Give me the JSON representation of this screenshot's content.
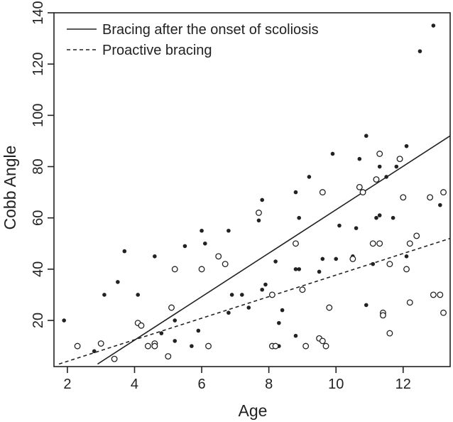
{
  "chart_data": {
    "type": "scatter",
    "xlabel": "Age",
    "ylabel": "Cobb Angle",
    "xlim": [
      1.6,
      13.4
    ],
    "ylim": [
      2,
      140
    ],
    "xticks": [
      2,
      4,
      6,
      8,
      10,
      12
    ],
    "yticks": [
      20,
      40,
      60,
      80,
      100,
      120,
      140
    ],
    "grid": false,
    "legend_position": "top-left",
    "series": [
      {
        "name": "Bracing after the onset of scoliosis",
        "marker": "filled-circle",
        "points": [
          [
            1.9,
            20
          ],
          [
            2.8,
            8
          ],
          [
            3.1,
            30
          ],
          [
            3.5,
            35
          ],
          [
            3.7,
            47
          ],
          [
            4.1,
            30
          ],
          [
            4.6,
            45
          ],
          [
            4.8,
            15
          ],
          [
            5.2,
            20
          ],
          [
            5.2,
            12
          ],
          [
            5.5,
            49
          ],
          [
            5.7,
            10
          ],
          [
            5.9,
            16
          ],
          [
            6.0,
            55
          ],
          [
            6.1,
            50
          ],
          [
            6.8,
            55
          ],
          [
            6.8,
            23
          ],
          [
            6.9,
            30
          ],
          [
            7.2,
            30
          ],
          [
            7.4,
            25
          ],
          [
            7.7,
            59
          ],
          [
            7.8,
            67
          ],
          [
            7.8,
            32
          ],
          [
            7.9,
            34
          ],
          [
            8.2,
            43
          ],
          [
            8.3,
            10
          ],
          [
            8.3,
            19
          ],
          [
            8.4,
            24
          ],
          [
            8.8,
            70
          ],
          [
            8.8,
            40
          ],
          [
            8.8,
            14
          ],
          [
            8.9,
            60
          ],
          [
            8.9,
            40
          ],
          [
            9.2,
            76
          ],
          [
            9.5,
            39
          ],
          [
            9.6,
            44
          ],
          [
            9.9,
            85
          ],
          [
            10.0,
            44
          ],
          [
            10.1,
            57
          ],
          [
            10.5,
            45
          ],
          [
            10.6,
            56
          ],
          [
            10.7,
            83
          ],
          [
            10.8,
            70
          ],
          [
            10.9,
            92
          ],
          [
            10.9,
            26
          ],
          [
            11.1,
            42
          ],
          [
            11.2,
            60
          ],
          [
            11.3,
            61
          ],
          [
            11.3,
            80
          ],
          [
            11.5,
            76
          ],
          [
            11.7,
            60
          ],
          [
            11.8,
            80
          ],
          [
            12.1,
            88
          ],
          [
            12.1,
            45
          ],
          [
            12.5,
            125
          ],
          [
            12.9,
            135
          ],
          [
            13.1,
            65
          ]
        ]
      },
      {
        "name": "Proactive bracing",
        "marker": "open-circle",
        "points": [
          [
            2.3,
            10
          ],
          [
            3.0,
            11
          ],
          [
            3.4,
            5
          ],
          [
            4.1,
            19
          ],
          [
            4.2,
            18
          ],
          [
            4.4,
            10
          ],
          [
            4.6,
            11
          ],
          [
            4.6,
            10
          ],
          [
            5.0,
            6
          ],
          [
            5.1,
            25
          ],
          [
            5.2,
            40
          ],
          [
            6.0,
            40
          ],
          [
            6.2,
            10
          ],
          [
            6.5,
            45
          ],
          [
            6.7,
            42
          ],
          [
            7.7,
            62
          ],
          [
            8.1,
            30
          ],
          [
            8.1,
            10
          ],
          [
            8.2,
            10
          ],
          [
            8.8,
            50
          ],
          [
            9.0,
            32
          ],
          [
            9.1,
            10
          ],
          [
            9.5,
            13
          ],
          [
            9.6,
            70
          ],
          [
            9.6,
            12
          ],
          [
            9.7,
            10
          ],
          [
            9.8,
            25
          ],
          [
            10.5,
            44
          ],
          [
            10.7,
            72
          ],
          [
            10.8,
            70
          ],
          [
            11.1,
            50
          ],
          [
            11.2,
            75
          ],
          [
            11.3,
            85
          ],
          [
            11.3,
            50
          ],
          [
            11.4,
            23
          ],
          [
            11.4,
            22
          ],
          [
            11.6,
            15
          ],
          [
            11.6,
            42
          ],
          [
            11.9,
            83
          ],
          [
            12.0,
            68
          ],
          [
            12.1,
            40
          ],
          [
            12.2,
            50
          ],
          [
            12.2,
            27
          ],
          [
            12.4,
            53
          ],
          [
            12.8,
            68
          ],
          [
            12.9,
            30
          ],
          [
            13.1,
            30
          ],
          [
            13.2,
            70
          ],
          [
            13.2,
            23
          ]
        ]
      }
    ],
    "fit_lines": [
      {
        "name": "Bracing after the onset of scoliosis",
        "style": "solid",
        "x": [
          2.9,
          13.4
        ],
        "y": [
          3,
          92
        ]
      },
      {
        "name": "Proactive bracing",
        "style": "dashed",
        "x": [
          1.75,
          13.4
        ],
        "y": [
          3,
          52
        ]
      }
    ],
    "legend": [
      {
        "label": "Bracing after the onset of scoliosis",
        "style": "solid"
      },
      {
        "label": "Proactive bracing",
        "style": "dashed"
      }
    ]
  }
}
